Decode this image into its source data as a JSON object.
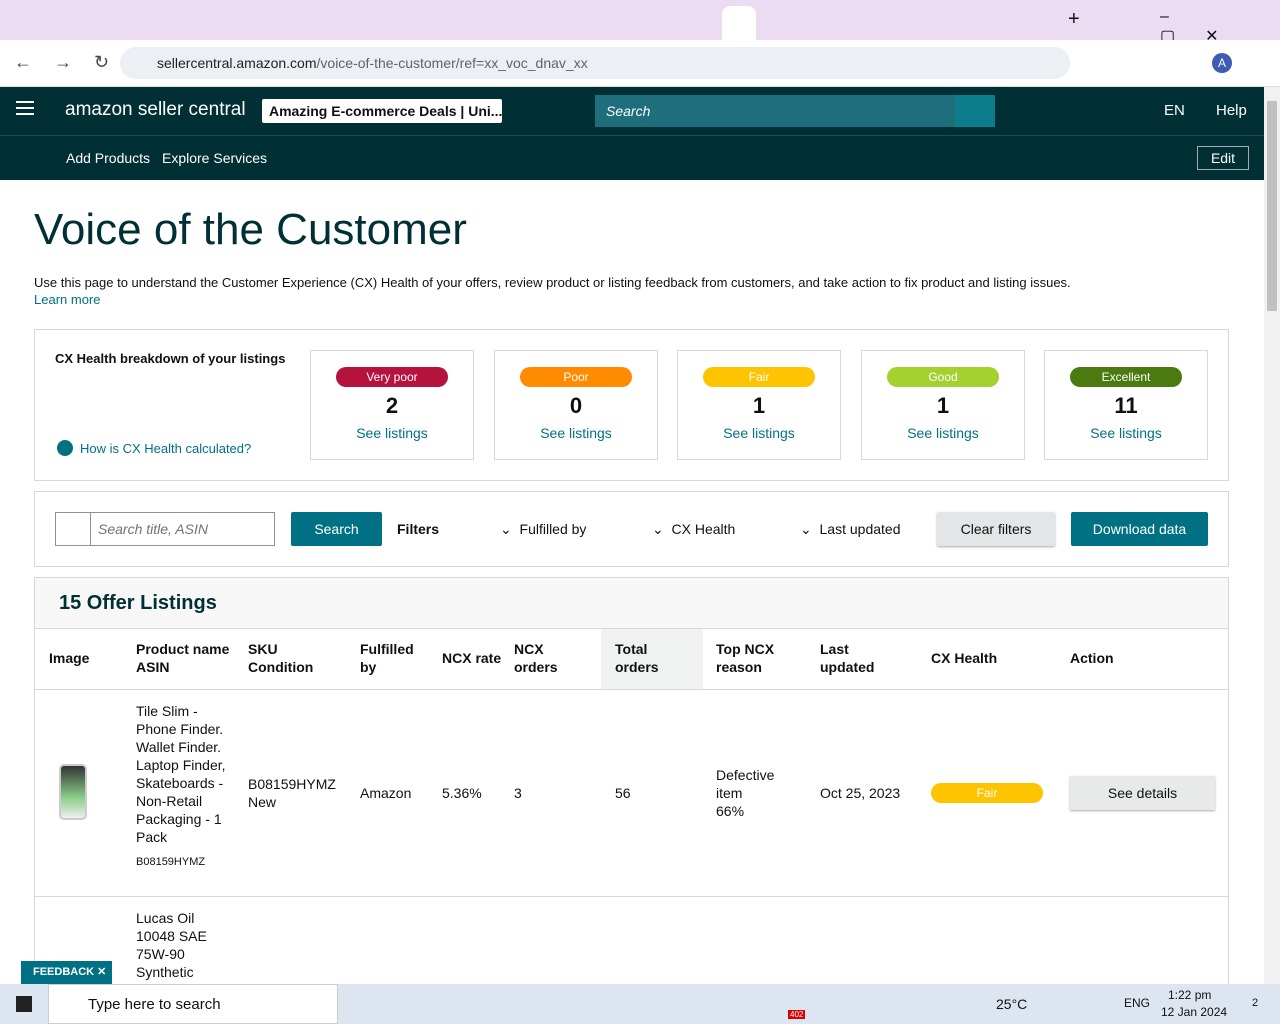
{
  "browser": {
    "url_host": "sellercentral.amazon.com",
    "url_path": "/voice-of-the-customer/ref=xx_voc_dnav_xx",
    "profile": "A"
  },
  "header": {
    "logo": "amazon seller central",
    "store": "Amazing E-commerce Deals | Uni...",
    "search_placeholder": "Search",
    "language": "EN",
    "help": "Help"
  },
  "nav": {
    "items": [
      "Add Products",
      "Explore Services"
    ],
    "edit": "Edit"
  },
  "page": {
    "title": "Voice of the Customer",
    "description": "Use this page to understand the Customer Experience (CX) Health of your offers, review product or listing feedback from customers, and take action to fix product and listing issues.",
    "learn_more": "Learn more"
  },
  "breakdown": {
    "title": "CX Health breakdown of your listings",
    "help_link": "How is CX Health calculated?",
    "cards": [
      {
        "label": "Very poor",
        "count": "2",
        "link": "See listings",
        "color": "#b5123e"
      },
      {
        "label": "Poor",
        "count": "0",
        "link": "See listings",
        "color": "#ff8c00"
      },
      {
        "label": "Fair",
        "count": "1",
        "link": "See listings",
        "color": "#ffc400"
      },
      {
        "label": "Good",
        "count": "1",
        "link": "See listings",
        "color": "#a4d12e"
      },
      {
        "label": "Excellent",
        "count": "11",
        "link": "See listings",
        "color": "#4a7a10"
      }
    ]
  },
  "filters": {
    "search_placeholder": "Search title, ASIN",
    "search_button": "Search",
    "label": "Filters",
    "dropdowns": [
      "Fulfilled by",
      "CX Health",
      "Last updated"
    ],
    "clear": "Clear filters",
    "download": "Download data"
  },
  "listings": {
    "title": "15 Offer Listings",
    "columns": [
      [
        "Image"
      ],
      [
        "Product name",
        "ASIN"
      ],
      [
        "SKU",
        "Condition"
      ],
      [
        "Fulfilled",
        "by"
      ],
      [
        "NCX rate"
      ],
      [
        "NCX",
        "orders"
      ],
      [
        "Total",
        "orders"
      ],
      [
        "Top NCX",
        "reason"
      ],
      [
        "Last",
        "updated"
      ],
      [
        "CX Health"
      ],
      [
        "Action"
      ]
    ],
    "rows": [
      {
        "product": "Tile Slim - Phone Finder. Wallet Finder. Laptop Finder, Skateboards - Non-Retail Packaging - 1 Pack",
        "asin": "B08159HYMZ",
        "sku": "B08159HYMZ",
        "condition": "New",
        "fulfilled": "Amazon",
        "ncx_rate": "5.36%",
        "ncx_orders": "3",
        "total_orders": "56",
        "reason": "Defective item",
        "reason_share": "66%",
        "last_updated": "Oct 25, 2023",
        "cx_health": "Fair",
        "action": "See details"
      },
      {
        "product": "Lucas Oil 10048 SAE 75W-90 Synthetic"
      }
    ]
  },
  "feedback": "FEEDBACK",
  "taskbar": {
    "search": "Type here to search",
    "badge": "402",
    "weather": "25°C",
    "language": "ENG",
    "time": "1:22 pm",
    "date": "12 Jan 2024",
    "notifications": "2"
  }
}
